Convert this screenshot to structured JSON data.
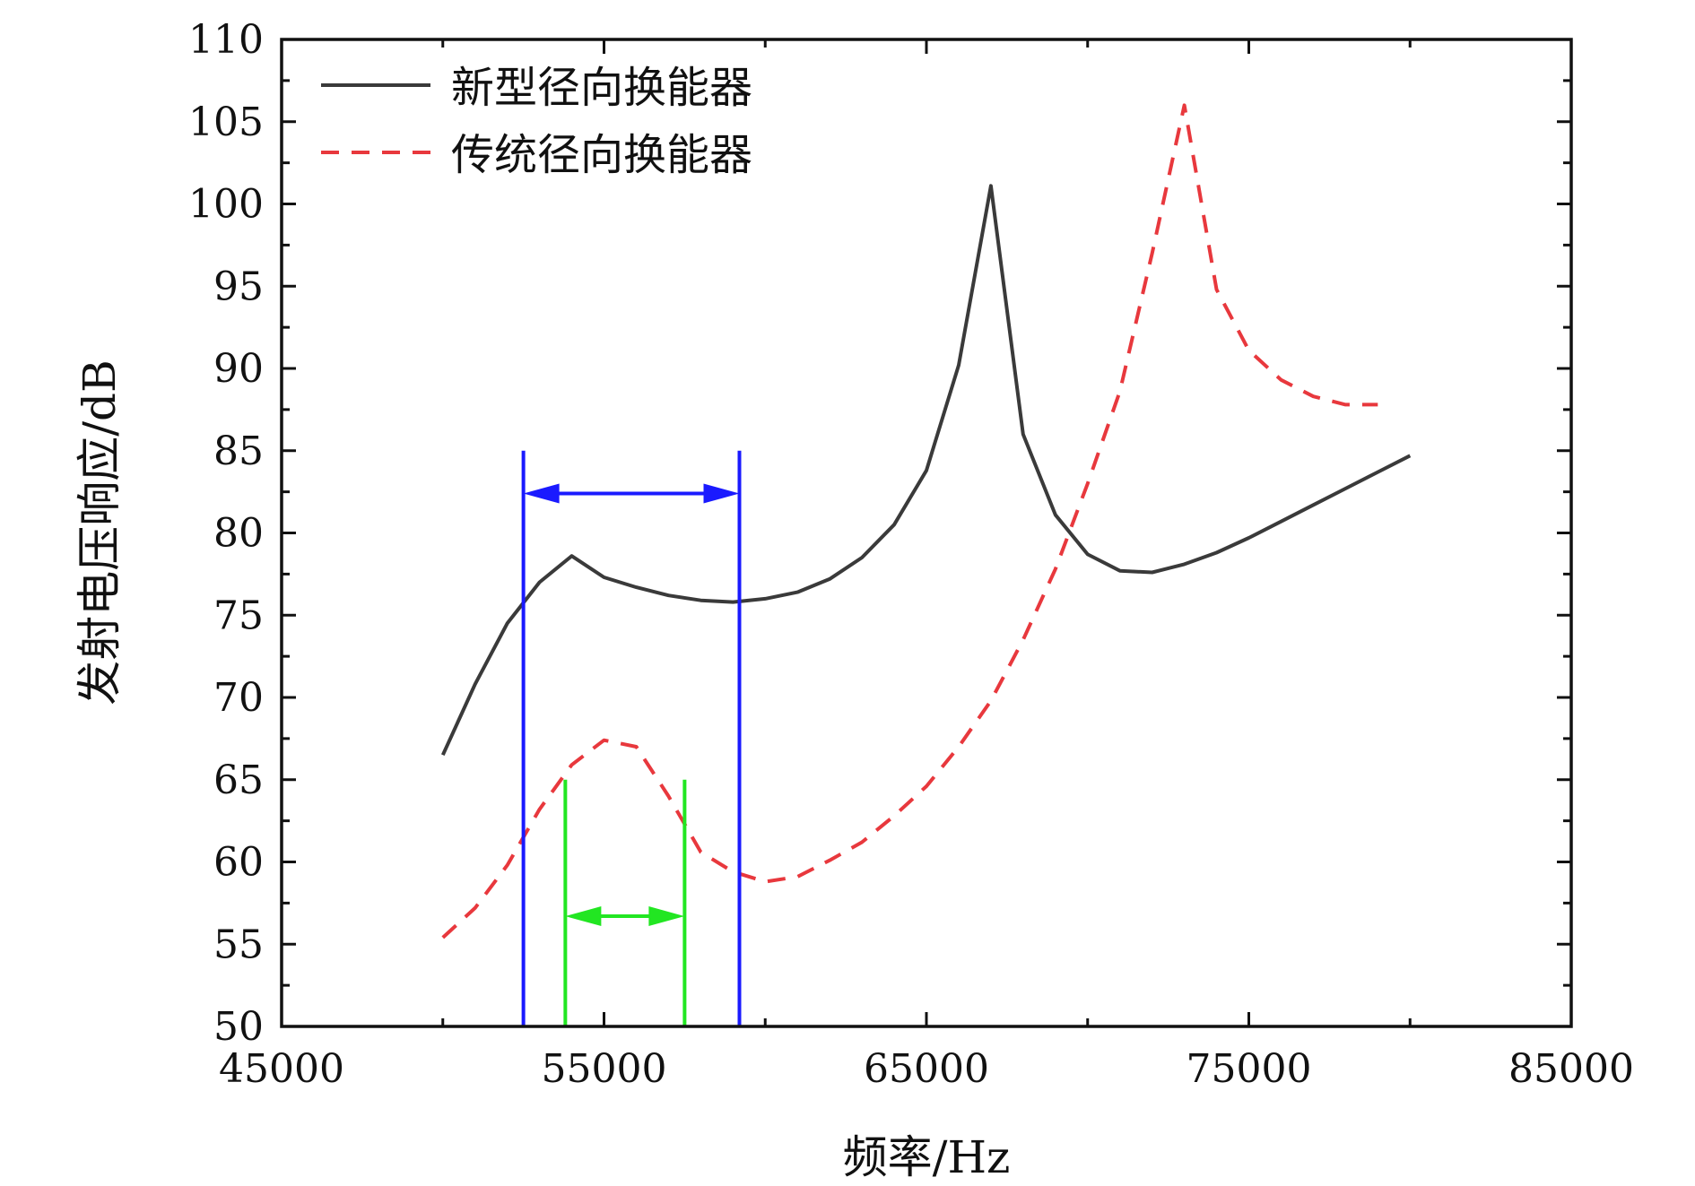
{
  "chart_data": {
    "type": "line",
    "xlabel": "频率/Hz",
    "ylabel": "发射电压响应/dB",
    "xlim": [
      45000,
      85000
    ],
    "ylim": [
      50,
      110
    ],
    "xticks": [
      45000,
      55000,
      65000,
      75000,
      85000
    ],
    "yticks": [
      50,
      55,
      60,
      65,
      70,
      75,
      80,
      85,
      90,
      95,
      100,
      105,
      110
    ],
    "grid": false,
    "legend_position": "top-left",
    "series": [
      {
        "name": "新型径向换能器",
        "color": "#3a3a3a",
        "style": "solid",
        "x": [
          50000,
          51000,
          52000,
          53000,
          54000,
          55000,
          56000,
          57000,
          58000,
          59000,
          60000,
          61000,
          62000,
          63000,
          64000,
          65000,
          66000,
          67000,
          68000,
          69000,
          70000,
          71000,
          72000,
          73000,
          74000,
          75000,
          76000,
          77000,
          78000,
          79000,
          80000
        ],
        "y": [
          66.5,
          70.8,
          74.5,
          77.0,
          78.6,
          77.3,
          76.7,
          76.2,
          75.9,
          75.8,
          76.0,
          76.4,
          77.2,
          78.5,
          80.5,
          83.8,
          90.2,
          101.1,
          86.0,
          81.1,
          78.7,
          77.7,
          77.6,
          78.1,
          78.8,
          79.7,
          80.7,
          81.7,
          82.7,
          83.7,
          84.7
        ]
      },
      {
        "name": "传统径向换能器",
        "color": "#e8383d",
        "style": "dashed",
        "x": [
          50000,
          51000,
          52000,
          53000,
          54000,
          55000,
          56000,
          57000,
          58000,
          59000,
          60000,
          61000,
          62000,
          63000,
          64000,
          65000,
          66000,
          67000,
          68000,
          69000,
          70000,
          71000,
          72000,
          73000,
          74000,
          75000,
          76000,
          77000,
          78000,
          79000
        ],
        "y": [
          55.4,
          57.2,
          59.8,
          63.2,
          65.9,
          67.4,
          67.0,
          64.0,
          60.6,
          59.4,
          58.8,
          59.1,
          60.1,
          61.2,
          62.8,
          64.6,
          67.0,
          69.8,
          73.5,
          77.8,
          83.0,
          88.6,
          97.0,
          106.0,
          94.8,
          91.1,
          89.3,
          88.3,
          87.8,
          87.8
        ]
      }
    ],
    "annotations": [
      {
        "kind": "bandwidth-markers",
        "color": "#1a1aff",
        "x_start": 52500,
        "x_end": 59200,
        "line_top": 85.0,
        "arrow_y": 82.4
      },
      {
        "kind": "bandwidth-markers",
        "color": "#22e622",
        "x_start": 53800,
        "x_end": 57500,
        "line_top": 65.0,
        "arrow_y": 56.7
      }
    ]
  }
}
